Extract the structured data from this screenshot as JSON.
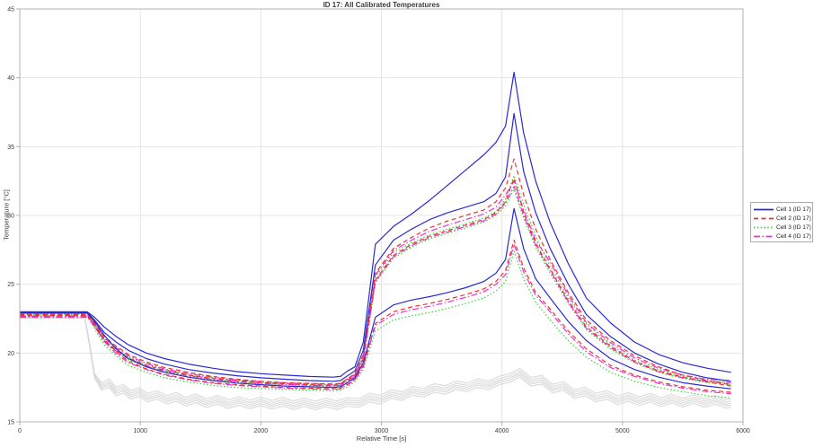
{
  "chart_data": {
    "type": "line",
    "title": "ID 17: All Calibrated Temperatures",
    "xlabel": "Relative Time [s]",
    "ylabel": "Temperature [°C]",
    "xlim": [
      0,
      6000
    ],
    "ylim": [
      15,
      45
    ],
    "xticks": [
      0,
      1000,
      2000,
      3000,
      4000,
      5000,
      6000
    ],
    "yticks": [
      15,
      20,
      25,
      30,
      35,
      40,
      45
    ],
    "grid": true,
    "legend_position": "right-outside",
    "colors": {
      "background": "#ffffff",
      "grid": "#e4e4e4",
      "axis": "#b0b0b0",
      "text": "#3c3c3c",
      "gray_band": "#d8d8d8"
    },
    "groups": {
      "cell1": {
        "color": "#2a2ad2",
        "dash": ""
      },
      "cell2": {
        "color": "#e83434",
        "dash": "5,3.5"
      },
      "cell3": {
        "color": "#2fd92f",
        "dash": "1.5,2.3"
      },
      "cell4": {
        "color": "#f02fd5",
        "dash": "7,2.5,1.5,2.5"
      }
    },
    "legend": {
      "items": [
        {
          "label": "Cell 1 (ID 17)",
          "group": "cell1"
        },
        {
          "label": "Cell 2 (ID 17)",
          "group": "cell2"
        },
        {
          "label": "Cell 3 (ID 17)",
          "group": "cell3"
        },
        {
          "label": "Cell 4 (ID 17)",
          "group": "cell4"
        }
      ]
    },
    "t": [
      0,
      560,
      620,
      700,
      800,
      900,
      1050,
      1200,
      1400,
      1600,
      1800,
      2000,
      2200,
      2400,
      2600,
      2660,
      2720,
      2780,
      2850,
      2950,
      3100,
      3250,
      3400,
      3550,
      3700,
      3850,
      3950,
      4030,
      4100,
      4180,
      4280,
      4400,
      4550,
      4700,
      4900,
      5100,
      5300,
      5500,
      5700,
      5900
    ],
    "series": [
      {
        "name": "cell3-sensor1",
        "group": "cell3",
        "values": [
          22.9,
          22.9,
          22.1,
          21.0,
          20.3,
          19.7,
          19.2,
          18.8,
          18.45,
          18.2,
          18.0,
          17.9,
          17.8,
          17.75,
          17.7,
          17.75,
          18.1,
          18.4,
          19.7,
          25.5,
          27.3,
          28.0,
          28.6,
          29.0,
          29.4,
          29.8,
          30.3,
          31.2,
          32.9,
          30.8,
          28.5,
          26.3,
          24.0,
          22.1,
          20.6,
          19.5,
          18.8,
          18.3,
          18.0,
          17.8
        ]
      },
      {
        "name": "cell3-sensor2",
        "group": "cell3",
        "values": [
          22.85,
          22.85,
          21.95,
          20.8,
          20.1,
          19.5,
          19.0,
          18.65,
          18.3,
          18.05,
          17.9,
          17.78,
          17.7,
          17.63,
          17.58,
          17.63,
          17.95,
          18.3,
          19.5,
          25.1,
          26.9,
          27.7,
          28.3,
          28.7,
          29.1,
          29.5,
          30.0,
          30.7,
          31.9,
          29.8,
          27.7,
          25.8,
          23.6,
          21.7,
          20.3,
          19.3,
          18.6,
          18.15,
          17.85,
          17.7
        ]
      },
      {
        "name": "cell3-sensor3",
        "group": "cell3",
        "values": [
          22.8,
          22.8,
          21.8,
          20.6,
          19.8,
          19.1,
          18.6,
          18.2,
          17.9,
          17.65,
          17.5,
          17.42,
          17.35,
          17.3,
          17.25,
          17.3,
          17.55,
          17.9,
          18.8,
          21.6,
          22.4,
          22.7,
          22.95,
          23.25,
          23.6,
          24.0,
          24.5,
          25.2,
          27.4,
          25.4,
          23.7,
          22.4,
          20.9,
          19.7,
          18.6,
          17.95,
          17.5,
          17.2,
          16.9,
          16.75
        ]
      },
      {
        "name": "cell4-sensor1",
        "group": "cell4",
        "values": [
          22.7,
          22.7,
          22.15,
          21.1,
          20.4,
          19.8,
          19.25,
          18.85,
          18.5,
          18.25,
          18.05,
          17.92,
          17.83,
          17.78,
          17.72,
          17.78,
          18.12,
          18.45,
          19.8,
          25.65,
          27.45,
          28.2,
          28.85,
          29.3,
          29.7,
          30.1,
          30.6,
          31.5,
          32.5,
          30.4,
          28.2,
          26.6,
          24.2,
          22.2,
          20.75,
          19.65,
          18.9,
          18.4,
          18.1,
          18.0
        ]
      },
      {
        "name": "cell4-sensor2",
        "group": "cell4",
        "values": [
          22.65,
          22.65,
          21.9,
          20.9,
          20.15,
          19.6,
          19.05,
          18.7,
          18.35,
          18.1,
          17.93,
          17.8,
          17.72,
          17.66,
          17.6,
          17.66,
          17.98,
          18.32,
          19.55,
          25.2,
          27.0,
          27.8,
          28.4,
          28.8,
          29.2,
          29.6,
          30.1,
          30.9,
          32.1,
          30.0,
          27.85,
          26.0,
          23.7,
          21.8,
          20.4,
          19.35,
          18.65,
          18.2,
          17.95,
          17.85
        ]
      },
      {
        "name": "cell4-sensor3",
        "group": "cell4",
        "values": [
          22.6,
          22.6,
          22.0,
          20.85,
          19.95,
          19.3,
          18.8,
          18.4,
          18.05,
          17.8,
          17.65,
          17.55,
          17.46,
          17.4,
          17.36,
          17.4,
          17.68,
          18.05,
          19.0,
          22.0,
          22.8,
          23.15,
          23.4,
          23.7,
          24.05,
          24.45,
          25.0,
          25.7,
          27.9,
          25.9,
          24.2,
          23.0,
          21.4,
          20.1,
          18.95,
          18.3,
          17.8,
          17.45,
          17.2,
          17.05
        ]
      },
      {
        "name": "cell2-sensor1",
        "group": "cell2",
        "values": [
          22.8,
          22.8,
          22.2,
          21.2,
          20.5,
          19.9,
          19.35,
          18.95,
          18.6,
          18.3,
          18.1,
          17.95,
          17.85,
          17.8,
          17.75,
          17.8,
          18.15,
          18.5,
          19.9,
          25.8,
          27.6,
          28.4,
          29.1,
          29.6,
          30.0,
          30.4,
          31.0,
          32.0,
          34.1,
          31.5,
          29.0,
          26.8,
          24.4,
          22.4,
          20.9,
          19.8,
          19.0,
          18.4,
          18.0,
          17.7
        ]
      },
      {
        "name": "cell2-sensor2",
        "group": "cell2",
        "values": [
          22.75,
          22.75,
          22.0,
          20.95,
          20.2,
          19.65,
          19.1,
          18.75,
          18.4,
          18.15,
          17.97,
          17.85,
          17.77,
          17.7,
          17.65,
          17.7,
          18.05,
          18.35,
          19.6,
          25.3,
          27.1,
          27.9,
          28.5,
          28.9,
          29.3,
          29.7,
          30.2,
          31.0,
          32.7,
          30.2,
          28.0,
          26.1,
          23.8,
          21.9,
          20.5,
          19.4,
          18.7,
          18.25,
          17.9,
          17.6
        ]
      },
      {
        "name": "cell2-sensor3",
        "group": "cell2",
        "values": [
          22.7,
          22.7,
          22.1,
          21.0,
          20.1,
          19.4,
          18.85,
          18.45,
          18.1,
          17.85,
          17.7,
          17.6,
          17.5,
          17.45,
          17.4,
          17.45,
          17.72,
          18.1,
          19.1,
          22.15,
          23.0,
          23.35,
          23.6,
          23.9,
          24.25,
          24.65,
          25.2,
          26.0,
          28.2,
          26.2,
          24.4,
          23.2,
          21.6,
          20.3,
          19.1,
          18.4,
          17.9,
          17.55,
          17.3,
          17.15
        ]
      },
      {
        "name": "cell1-sensor1",
        "group": "cell1",
        "values": [
          23.0,
          23.0,
          22.6,
          21.9,
          21.2,
          20.6,
          20.0,
          19.6,
          19.2,
          18.9,
          18.65,
          18.5,
          18.4,
          18.3,
          18.25,
          18.3,
          18.7,
          19.0,
          20.8,
          27.9,
          29.2,
          30.1,
          31.1,
          32.2,
          33.3,
          34.4,
          35.3,
          36.5,
          40.4,
          36.0,
          32.5,
          29.5,
          26.5,
          24.0,
          22.2,
          20.8,
          19.9,
          19.3,
          18.9,
          18.6
        ]
      },
      {
        "name": "cell1-sensor2",
        "group": "cell1",
        "values": [
          22.95,
          22.95,
          22.4,
          21.5,
          20.8,
          20.2,
          19.6,
          19.2,
          18.8,
          18.55,
          18.35,
          18.2,
          18.1,
          18.0,
          17.95,
          18.0,
          18.35,
          18.7,
          20.2,
          26.4,
          28.2,
          29.0,
          29.7,
          30.2,
          30.6,
          31.0,
          31.6,
          32.8,
          37.4,
          33.2,
          30.2,
          27.6,
          25.0,
          22.8,
          21.2,
          20.0,
          19.2,
          18.6,
          18.2,
          17.95
        ]
      },
      {
        "name": "cell1-sensor3",
        "group": "cell1",
        "values": [
          22.9,
          22.9,
          22.3,
          21.3,
          20.3,
          19.6,
          19.0,
          18.6,
          18.25,
          18.0,
          17.82,
          17.7,
          17.6,
          17.55,
          17.5,
          17.55,
          17.85,
          18.2,
          19.3,
          22.6,
          23.5,
          23.85,
          24.1,
          24.4,
          24.75,
          25.2,
          25.8,
          26.8,
          30.5,
          27.6,
          25.4,
          24.0,
          22.3,
          20.9,
          19.6,
          18.8,
          18.25,
          17.85,
          17.6,
          17.4
        ]
      }
    ],
    "gray_series": {
      "name": "uncalibrated-reference-band",
      "offsets": [
        0,
        0.16,
        0.3,
        0.45,
        0.62
      ],
      "t": [
        0,
        540,
        580,
        620,
        680,
        740,
        800,
        860,
        920,
        990,
        1060,
        1140,
        1220,
        1300,
        1380,
        1460,
        1550,
        1640,
        1730,
        1820,
        1910,
        2000,
        2090,
        2180,
        2270,
        2360,
        2450,
        2540,
        2630,
        2720,
        2810,
        2900,
        2990,
        3080,
        3170,
        3260,
        3350,
        3440,
        3530,
        3620,
        3710,
        3800,
        3890,
        3980,
        4070,
        4150,
        4240,
        4330,
        4420,
        4510,
        4600,
        4690,
        4780,
        4870,
        4960,
        5050,
        5140,
        5230,
        5320,
        5410,
        5500,
        5590,
        5680,
        5770,
        5860,
        5900
      ],
      "base": [
        22.55,
        22.55,
        20.5,
        18.2,
        17.3,
        17.5,
        16.9,
        17.1,
        16.65,
        16.85,
        16.45,
        16.65,
        16.3,
        16.5,
        16.15,
        16.4,
        16.05,
        16.3,
        15.98,
        16.2,
        15.95,
        16.18,
        15.92,
        16.15,
        15.9,
        16.12,
        15.88,
        16.1,
        15.9,
        16.15,
        16.05,
        16.45,
        16.3,
        16.7,
        16.55,
        16.95,
        16.8,
        17.15,
        17.0,
        17.35,
        17.2,
        17.5,
        17.35,
        17.7,
        17.9,
        18.25,
        17.6,
        17.75,
        17.1,
        17.3,
        16.7,
        16.9,
        16.45,
        16.65,
        16.25,
        16.5,
        16.2,
        16.45,
        16.12,
        16.38,
        16.08,
        16.35,
        16.05,
        16.3,
        16.0,
        16.05
      ]
    }
  }
}
